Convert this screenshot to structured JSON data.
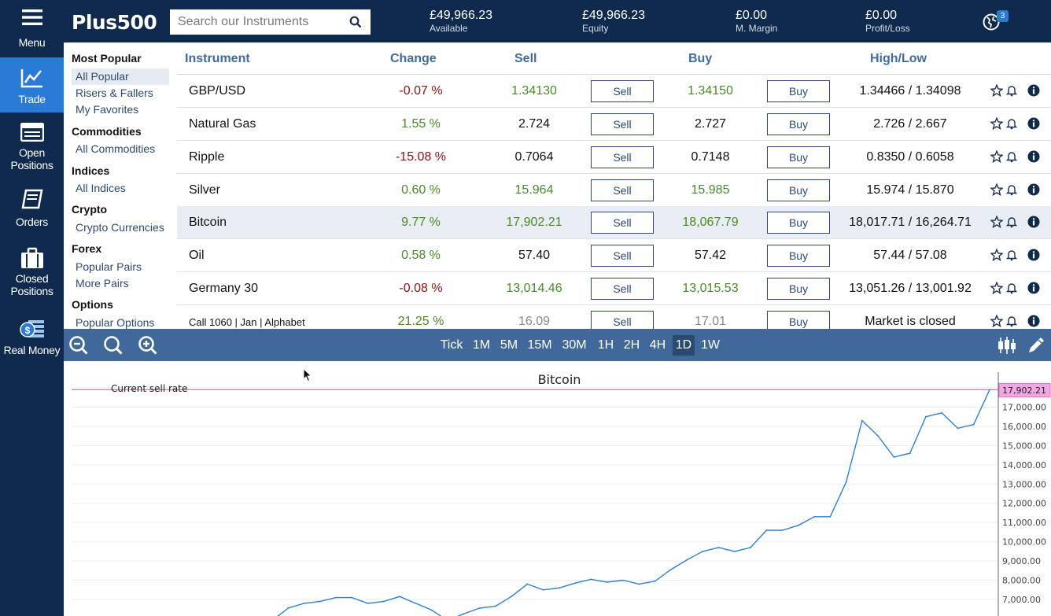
{
  "nav": {
    "menu": "Menu",
    "trade": "Trade",
    "open_positions": "Open Positions",
    "orders": "Orders",
    "closed_positions": "Closed Positions",
    "real_money": "Real Money"
  },
  "header": {
    "logo": "Plus500",
    "search_placeholder": "Search our Instruments",
    "stats": [
      {
        "value": "£49,966.23",
        "label": "Available"
      },
      {
        "value": "£49,966.23",
        "label": "Equity"
      },
      {
        "value": "£0.00",
        "label": "M. Margin"
      },
      {
        "value": "£0.00",
        "label": "Profit/Loss"
      }
    ],
    "notif_count": "3"
  },
  "sidebar": {
    "groups": [
      {
        "title": "Most Popular",
        "items": [
          "All Popular",
          "Risers & Fallers",
          "My Favorites"
        ]
      },
      {
        "title": "Commodities",
        "items": [
          "All Commodities"
        ]
      },
      {
        "title": "Indices",
        "items": [
          "All Indices"
        ]
      },
      {
        "title": "Crypto",
        "items": [
          "Crypto Currencies"
        ]
      },
      {
        "title": "Forex",
        "items": [
          "Popular Pairs",
          "More Pairs"
        ]
      },
      {
        "title": "Options",
        "items": [
          "Popular Options"
        ]
      }
    ]
  },
  "table": {
    "headers": {
      "instrument": "Instrument",
      "change": "Change",
      "sell": "Sell",
      "buy": "Buy",
      "highlow": "High/Low"
    },
    "sell_label": "Sell",
    "buy_label": "Buy",
    "rows": [
      {
        "name": "GBP/USD",
        "change": "-0.07 %",
        "sell": "1.34130",
        "buy": "1.34150",
        "hl": "1.34466 / 1.34098"
      },
      {
        "name": "Natural Gas",
        "change": "1.55 %",
        "sell": "2.724",
        "buy": "2.727",
        "hl": "2.726 / 2.667"
      },
      {
        "name": "Ripple",
        "change": "-15.08 %",
        "sell": "0.7064",
        "buy": "0.7148",
        "hl": "0.8350 / 0.6058"
      },
      {
        "name": "Silver",
        "change": "0.60 %",
        "sell": "15.964",
        "buy": "15.985",
        "hl": "15.974 / 15.870"
      },
      {
        "name": "Bitcoin",
        "change": "9.77 %",
        "sell": "17,902.21",
        "buy": "18,067.79",
        "hl": "18,017.71 / 16,264.71"
      },
      {
        "name": "Oil",
        "change": "0.58 %",
        "sell": "57.40",
        "buy": "57.42",
        "hl": "57.44 / 57.08"
      },
      {
        "name": "Germany 30",
        "change": "-0.08 %",
        "sell": "13,014.46",
        "buy": "13,015.53",
        "hl": "13,051.26 / 13,001.92"
      },
      {
        "name": "Call 1060 | Jan | Alphabet",
        "change": "21.25 %",
        "sell": "16.09",
        "buy": "17.01",
        "hl": "Market is closed"
      }
    ]
  },
  "toolbar": {
    "timeframes": [
      "Tick",
      "1M",
      "5M",
      "15M",
      "30M",
      "1H",
      "2H",
      "4H",
      "1D",
      "1W"
    ],
    "selected": "1D"
  },
  "chart_data": {
    "type": "line",
    "title": "Bitcoin",
    "annotation": "Current sell rate",
    "current_value": 17902.21,
    "current_label": "17,902.21",
    "ylim": [
      6500,
      18400
    ],
    "yticks": [
      "18,000.00",
      "17,000.00",
      "16,000.00",
      "15,000.00",
      "14,000.00",
      "13,000.00",
      "12,000.00",
      "11,000.00",
      "10,000.00",
      "9,000.00",
      "8,000.00",
      "7,000.00"
    ],
    "ytick_values": [
      18000,
      17000,
      16000,
      15000,
      14000,
      13000,
      12000,
      11000,
      10000,
      9000,
      8000,
      7000
    ],
    "series": [
      {
        "values": [
          5900,
          6550,
          6800,
          6900,
          7100,
          7100,
          6800,
          6900,
          7150,
          6800,
          6450,
          5900,
          6250,
          6550,
          6650,
          7150,
          7800,
          7500,
          7600,
          7850,
          8050,
          7900,
          8000,
          7800,
          7950,
          8550,
          9050,
          9500,
          9700,
          9500,
          9700,
          10600,
          10600,
          10850,
          11300,
          11300,
          13100,
          16300,
          15500,
          14400,
          14600,
          16500,
          16700,
          15900,
          16100,
          17902
        ]
      }
    ],
    "colors": {
      "line": "#2f7fd0",
      "current_rate": "#e06cc2"
    }
  }
}
